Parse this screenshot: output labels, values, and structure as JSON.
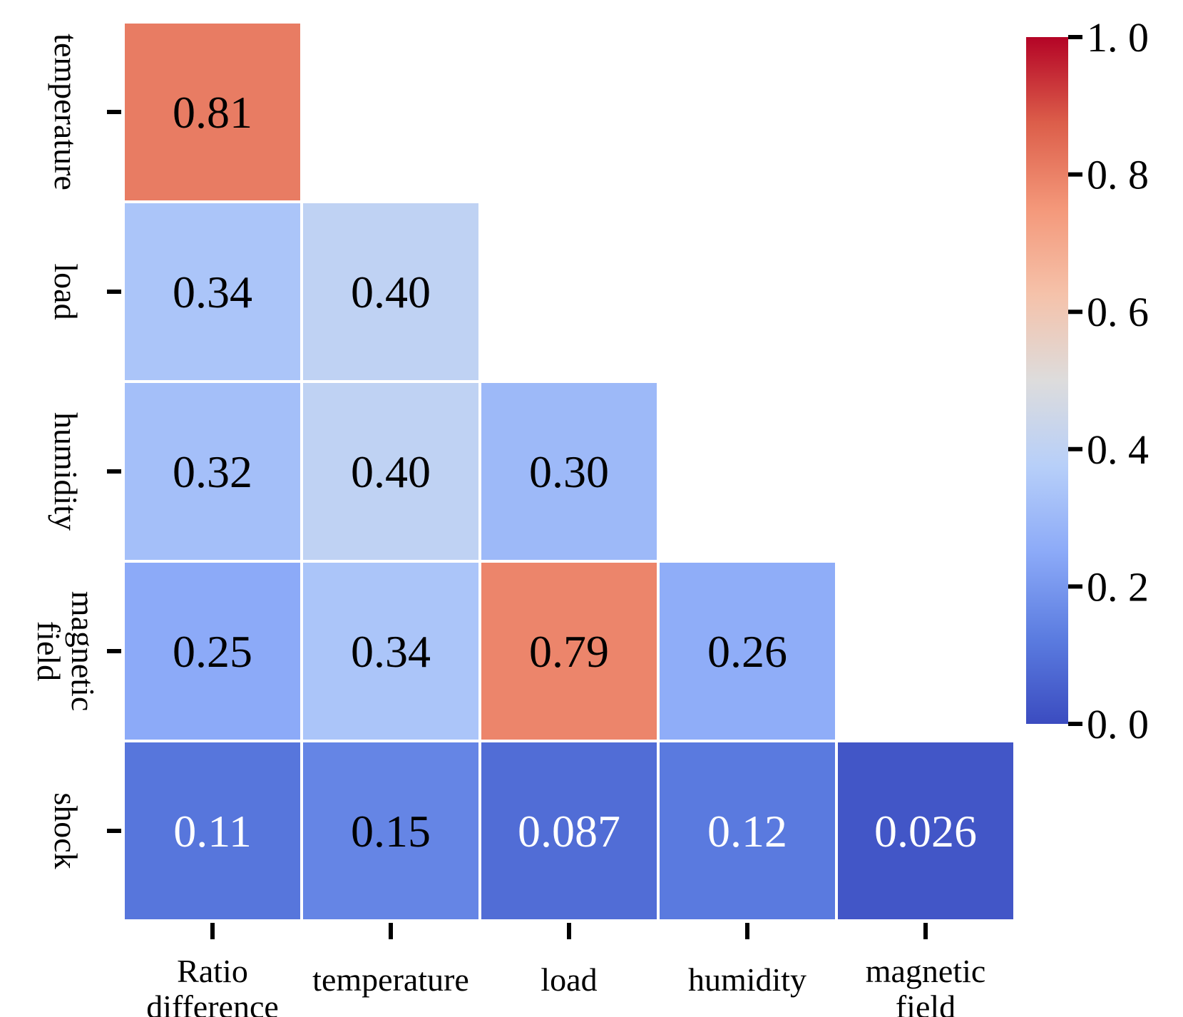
{
  "chart_data": {
    "type": "heatmap",
    "colormap": "coolwarm",
    "x_labels": [
      [
        "Ratio",
        "difference"
      ],
      [
        "temperature"
      ],
      [
        "load"
      ],
      [
        "humidity"
      ],
      [
        "magnetic",
        "field"
      ]
    ],
    "y_labels": [
      [
        "temperature"
      ],
      [
        "load"
      ],
      [
        "humidity"
      ],
      [
        "magnetic",
        "field"
      ],
      [
        "shock"
      ]
    ],
    "cells": [
      [
        {
          "v": 0.81,
          "t": "0.81"
        },
        null,
        null,
        null,
        null
      ],
      [
        {
          "v": 0.34,
          "t": "0.34"
        },
        {
          "v": 0.4,
          "t": "0.40"
        },
        null,
        null,
        null
      ],
      [
        {
          "v": 0.32,
          "t": "0.32"
        },
        {
          "v": 0.4,
          "t": "0.40"
        },
        {
          "v": 0.3,
          "t": "0.30"
        },
        null,
        null
      ],
      [
        {
          "v": 0.25,
          "t": "0.25"
        },
        {
          "v": 0.34,
          "t": "0.34"
        },
        {
          "v": 0.79,
          "t": "0.79"
        },
        {
          "v": 0.26,
          "t": "0.26"
        },
        null
      ],
      [
        {
          "v": 0.11,
          "t": "0.11"
        },
        {
          "v": 0.15,
          "t": "0.15"
        },
        {
          "v": 0.087,
          "t": "0.087"
        },
        {
          "v": 0.12,
          "t": "0.12"
        },
        {
          "v": 0.026,
          "t": "0.026"
        }
      ]
    ],
    "colorbar": {
      "range": [
        0.0,
        1.0
      ],
      "ticks": [
        0.0,
        0.2,
        0.4,
        0.6,
        0.8,
        1.0
      ],
      "tick_labels": [
        "0. 0",
        "0. 2",
        "0. 4",
        "0. 6",
        "0. 8",
        "1. 0"
      ]
    }
  }
}
